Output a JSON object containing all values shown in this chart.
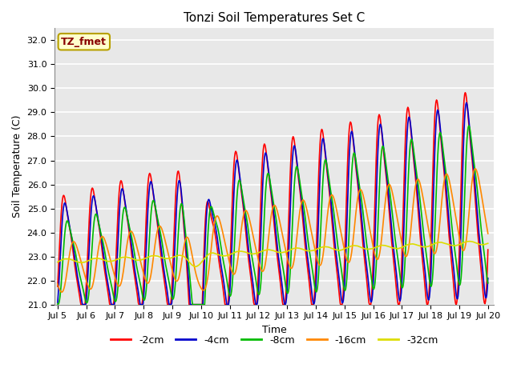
{
  "title": "Tonzi Soil Temperatures Set C",
  "xlabel": "Time",
  "ylabel": "Soil Temperature (C)",
  "ylim": [
    21.0,
    32.5
  ],
  "yticks": [
    21.0,
    22.0,
    23.0,
    24.0,
    25.0,
    26.0,
    27.0,
    28.0,
    29.0,
    30.0,
    31.0,
    32.0
  ],
  "bg_color": "#e8e8e8",
  "grid_color": "#ffffff",
  "annotation_text": "TZ_fmet",
  "annotation_facecolor": "#ffffcc",
  "annotation_edgecolor": "#b8a000",
  "annotation_textcolor": "#880000",
  "series": [
    {
      "label": "-2cm",
      "color": "#ff0000",
      "linewidth": 1.2
    },
    {
      "label": "-4cm",
      "color": "#0000cc",
      "linewidth": 1.2
    },
    {
      "label": "-8cm",
      "color": "#00bb00",
      "linewidth": 1.2
    },
    {
      "label": "-16cm",
      "color": "#ff8800",
      "linewidth": 1.2
    },
    {
      "label": "-32cm",
      "color": "#dddd00",
      "linewidth": 1.2
    }
  ],
  "xtick_labels": [
    "Jul 5",
    "Jul 6",
    "Jul 7",
    "Jul 8",
    "Jul 9",
    "Jul 10",
    "Jul 11",
    "Jul 12",
    "Jul 13",
    "Jul 14",
    "Jul 15",
    "Jul 16",
    "Jul 17",
    "Jul 18",
    "Jul 19",
    "Jul 20"
  ],
  "xtick_positions": [
    0,
    48,
    96,
    144,
    192,
    240,
    288,
    336,
    384,
    432,
    480,
    528,
    576,
    624,
    672,
    720
  ]
}
